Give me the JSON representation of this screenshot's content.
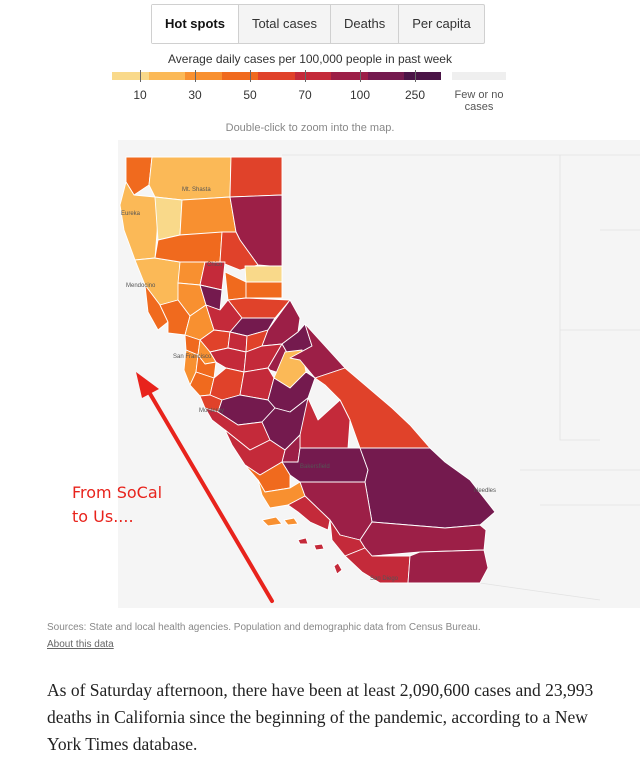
{
  "tabs": [
    {
      "label": "Hot spots",
      "active": true
    },
    {
      "label": "Total cases",
      "active": false
    },
    {
      "label": "Deaths",
      "active": false
    },
    {
      "label": "Per capita",
      "active": false
    }
  ],
  "legend": {
    "title": "Average daily cases per 100,000 people in past week",
    "colors": [
      "#f9d98a",
      "#fbb957",
      "#f89030",
      "#f06a1e",
      "#e0422a",
      "#c42a3a",
      "#9c1f47",
      "#741a4e",
      "#4a1446"
    ],
    "ticks": [
      "10",
      "30",
      "50",
      "70",
      "100",
      "250"
    ],
    "few_label": "Few or no cases",
    "few_color": "#efefef"
  },
  "hint": "Double-click to zoom into the map.",
  "map": {
    "labels": [
      "Mt. Shasta",
      "Eureka",
      "Chico",
      "Mendocino",
      "San Francisco",
      "Monterey",
      "Bakersfield",
      "Needles",
      "San Diego"
    ]
  },
  "annotation": {
    "line1": "From SoCal",
    "line2": "to Us....",
    "color": "#e8231c"
  },
  "sources": "Sources: State and local health agencies. Population and demographic data from Census Bureau.",
  "about_link": "About this data",
  "body_text": "As of Saturday afternoon, there have been at least 2,090,600 cases and 23,993 deaths in California since the beginning of the pandemic, according to a New York Times database."
}
